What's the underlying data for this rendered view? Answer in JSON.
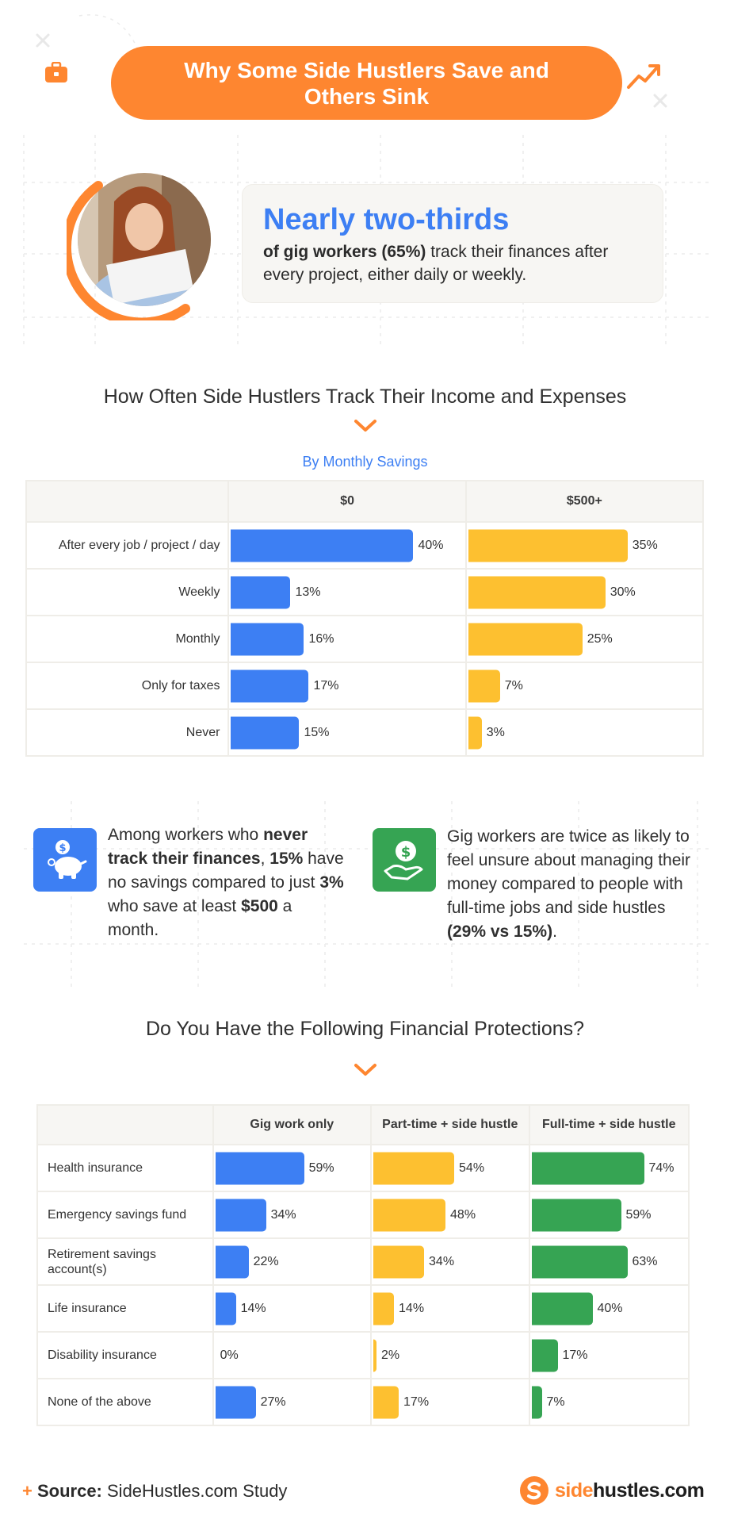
{
  "header": {
    "title": "Why Some Side Hustlers Save and Others Sink"
  },
  "stat": {
    "headline": "Nearly two-thirds",
    "bold": "of gig workers (65%)",
    "rest": " track their finances after every project, either daily or weekly."
  },
  "colors": {
    "orange": "#fe8630",
    "blue": "#3d7ff3",
    "yellow": "#fdc030",
    "green": "#36a453"
  },
  "section1": {
    "title": "How Often Side Hustlers Track Their Income and Expenses",
    "subtitle": "By Monthly Savings"
  },
  "section2": {
    "title": "Do You Have the Following Financial Protections?"
  },
  "info": {
    "left": {
      "icon": "piggy-bank-icon",
      "t1": "Among workers who ",
      "b1": "never track their finances",
      "t2": ", ",
      "b2": "15%",
      "t3": " have no savings compared to just ",
      "b3": "3%",
      "t4": " who save at least ",
      "b4": "$500",
      "t5": " a month."
    },
    "right": {
      "icon": "hand-dollar-icon",
      "t1": "Gig workers are twice as likely to feel unsure about managing their money compared to people with full-time jobs and side hustles ",
      "b1": "(29% vs 15%)",
      "t2": "."
    }
  },
  "chart_data": [
    {
      "type": "bar",
      "title": "How Often Side Hustlers Track Their Income and Expenses",
      "subtitle": "By Monthly Savings",
      "categories": [
        "After every job / project / day",
        "Weekly",
        "Monthly",
        "Only for taxes",
        "Never"
      ],
      "series": [
        {
          "name": "$0",
          "values": [
            40,
            13,
            16,
            17,
            15
          ],
          "labels": [
            "40%",
            "13%",
            "16%",
            "17%",
            "15%"
          ],
          "color": "#3d7ff3"
        },
        {
          "name": "$500+",
          "values": [
            35,
            30,
            25,
            7,
            3
          ],
          "labels": [
            "35%",
            "30%",
            "25%",
            "7%",
            "3%"
          ],
          "color": "#fdc030"
        }
      ],
      "xlim": [
        0,
        40
      ]
    },
    {
      "type": "bar",
      "title": "Do You Have the Following Financial Protections?",
      "categories": [
        "Health insurance",
        "Emergency savings fund",
        "Retirement savings account(s)",
        "Life insurance",
        "Disability insurance",
        "None of the above"
      ],
      "series": [
        {
          "name": "Gig work only",
          "values": [
            59,
            34,
            22,
            14,
            0,
            27
          ],
          "labels": [
            "59%",
            "34%",
            "22%",
            "14%",
            "0%",
            "27%"
          ],
          "color": "#3d7ff3"
        },
        {
          "name": "Part-time + side hustle",
          "values": [
            54,
            48,
            34,
            14,
            2,
            17
          ],
          "labels": [
            "54%",
            "48%",
            "34%",
            "14%",
            "2%",
            "17%"
          ],
          "color": "#fdc030"
        },
        {
          "name": "Full-time + side hustle",
          "values": [
            74,
            59,
            63,
            40,
            17,
            7
          ],
          "labels": [
            "74%",
            "59%",
            "63%",
            "40%",
            "17%",
            "7%"
          ],
          "color": "#36a453"
        }
      ],
      "xlim": [
        0,
        74
      ]
    }
  ],
  "footer": {
    "source_label": "Source:",
    "source_text": " SideHustles.com Study",
    "brand_a": "side",
    "brand_b": "hustles.com"
  }
}
